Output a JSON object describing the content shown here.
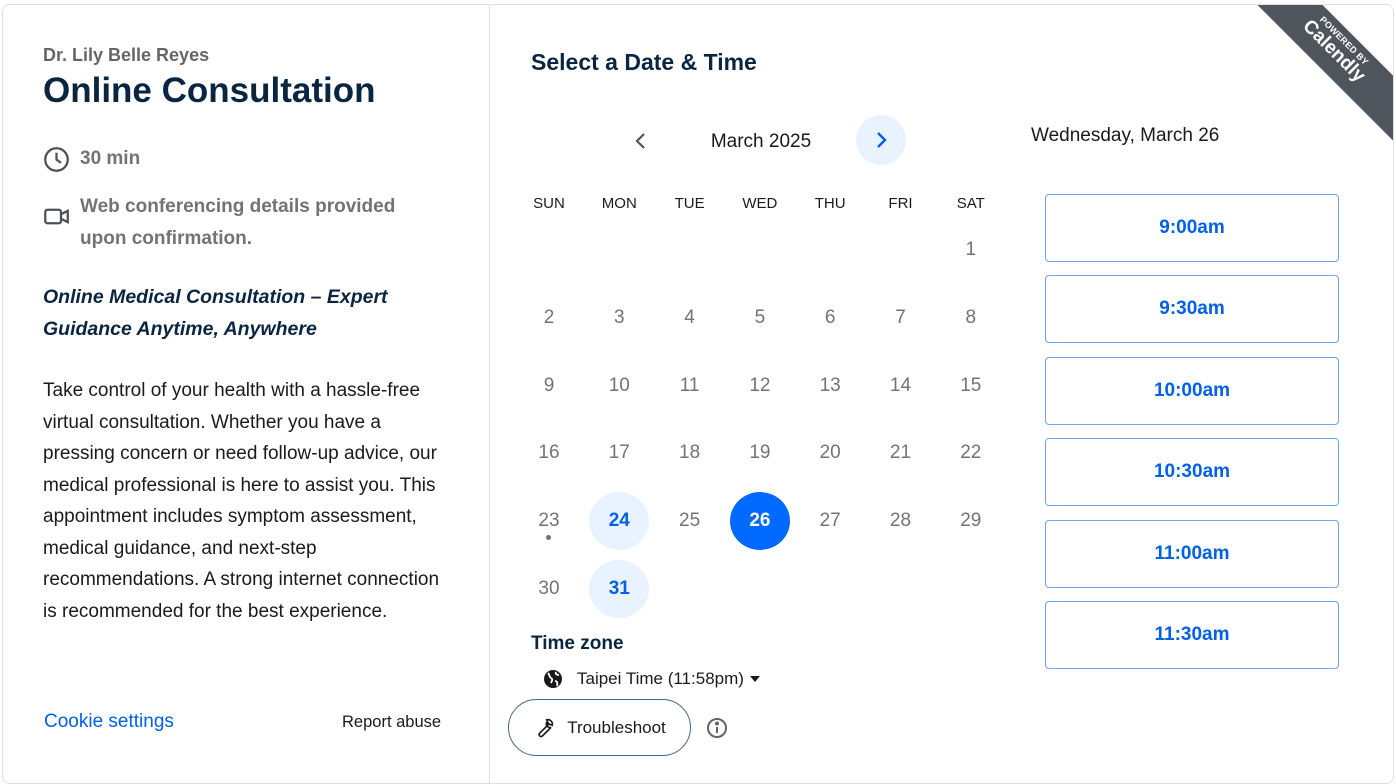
{
  "event": {
    "host": "Dr. Lily Belle Reyes",
    "title": "Online Consultation",
    "duration": "30 min",
    "location": "Web conferencing details provided upon confirmation.",
    "subtitle": "Online Medical Consultation – Expert Guidance Anytime, Anywhere",
    "description": "Take control of your health with a hassle-free virtual consultation. Whether you have a pressing concern or need follow-up advice, our medical professional is here to assist you. This appointment includes symptom assessment, medical guidance, and next-step recommendations. A strong internet connection is recommended for the best experience."
  },
  "footer": {
    "cookie": "Cookie settings",
    "report": "Report abuse"
  },
  "scheduler": {
    "heading": "Select a Date & Time",
    "month": "March 2025",
    "weekdays": [
      "SUN",
      "MON",
      "TUE",
      "WED",
      "THU",
      "FRI",
      "SAT"
    ],
    "weeks": [
      [
        null,
        null,
        null,
        null,
        null,
        null,
        1
      ],
      [
        2,
        3,
        4,
        5,
        6,
        7,
        8
      ],
      [
        9,
        10,
        11,
        12,
        13,
        14,
        15
      ],
      [
        16,
        17,
        18,
        19,
        20,
        21,
        22
      ],
      [
        23,
        24,
        25,
        26,
        27,
        28,
        29
      ],
      [
        30,
        31,
        null,
        null,
        null,
        null,
        null
      ]
    ],
    "available": [
      24,
      26,
      31
    ],
    "selected": 26,
    "today": 23,
    "timezone_label": "Time zone",
    "timezone": "Taipei Time (11:58pm)",
    "troubleshoot": "Troubleshoot"
  },
  "times": {
    "date": "Wednesday, March 26",
    "slots": [
      "9:00am",
      "9:30am",
      "10:00am",
      "10:30am",
      "11:00am",
      "11:30am"
    ]
  },
  "badge": {
    "powered": "POWERED BY",
    "brand": "Calendly"
  },
  "colors": {
    "accent": "#0069ff",
    "link": "#0060e6",
    "heading": "#0a2540",
    "ribbon": "#4e555c"
  }
}
